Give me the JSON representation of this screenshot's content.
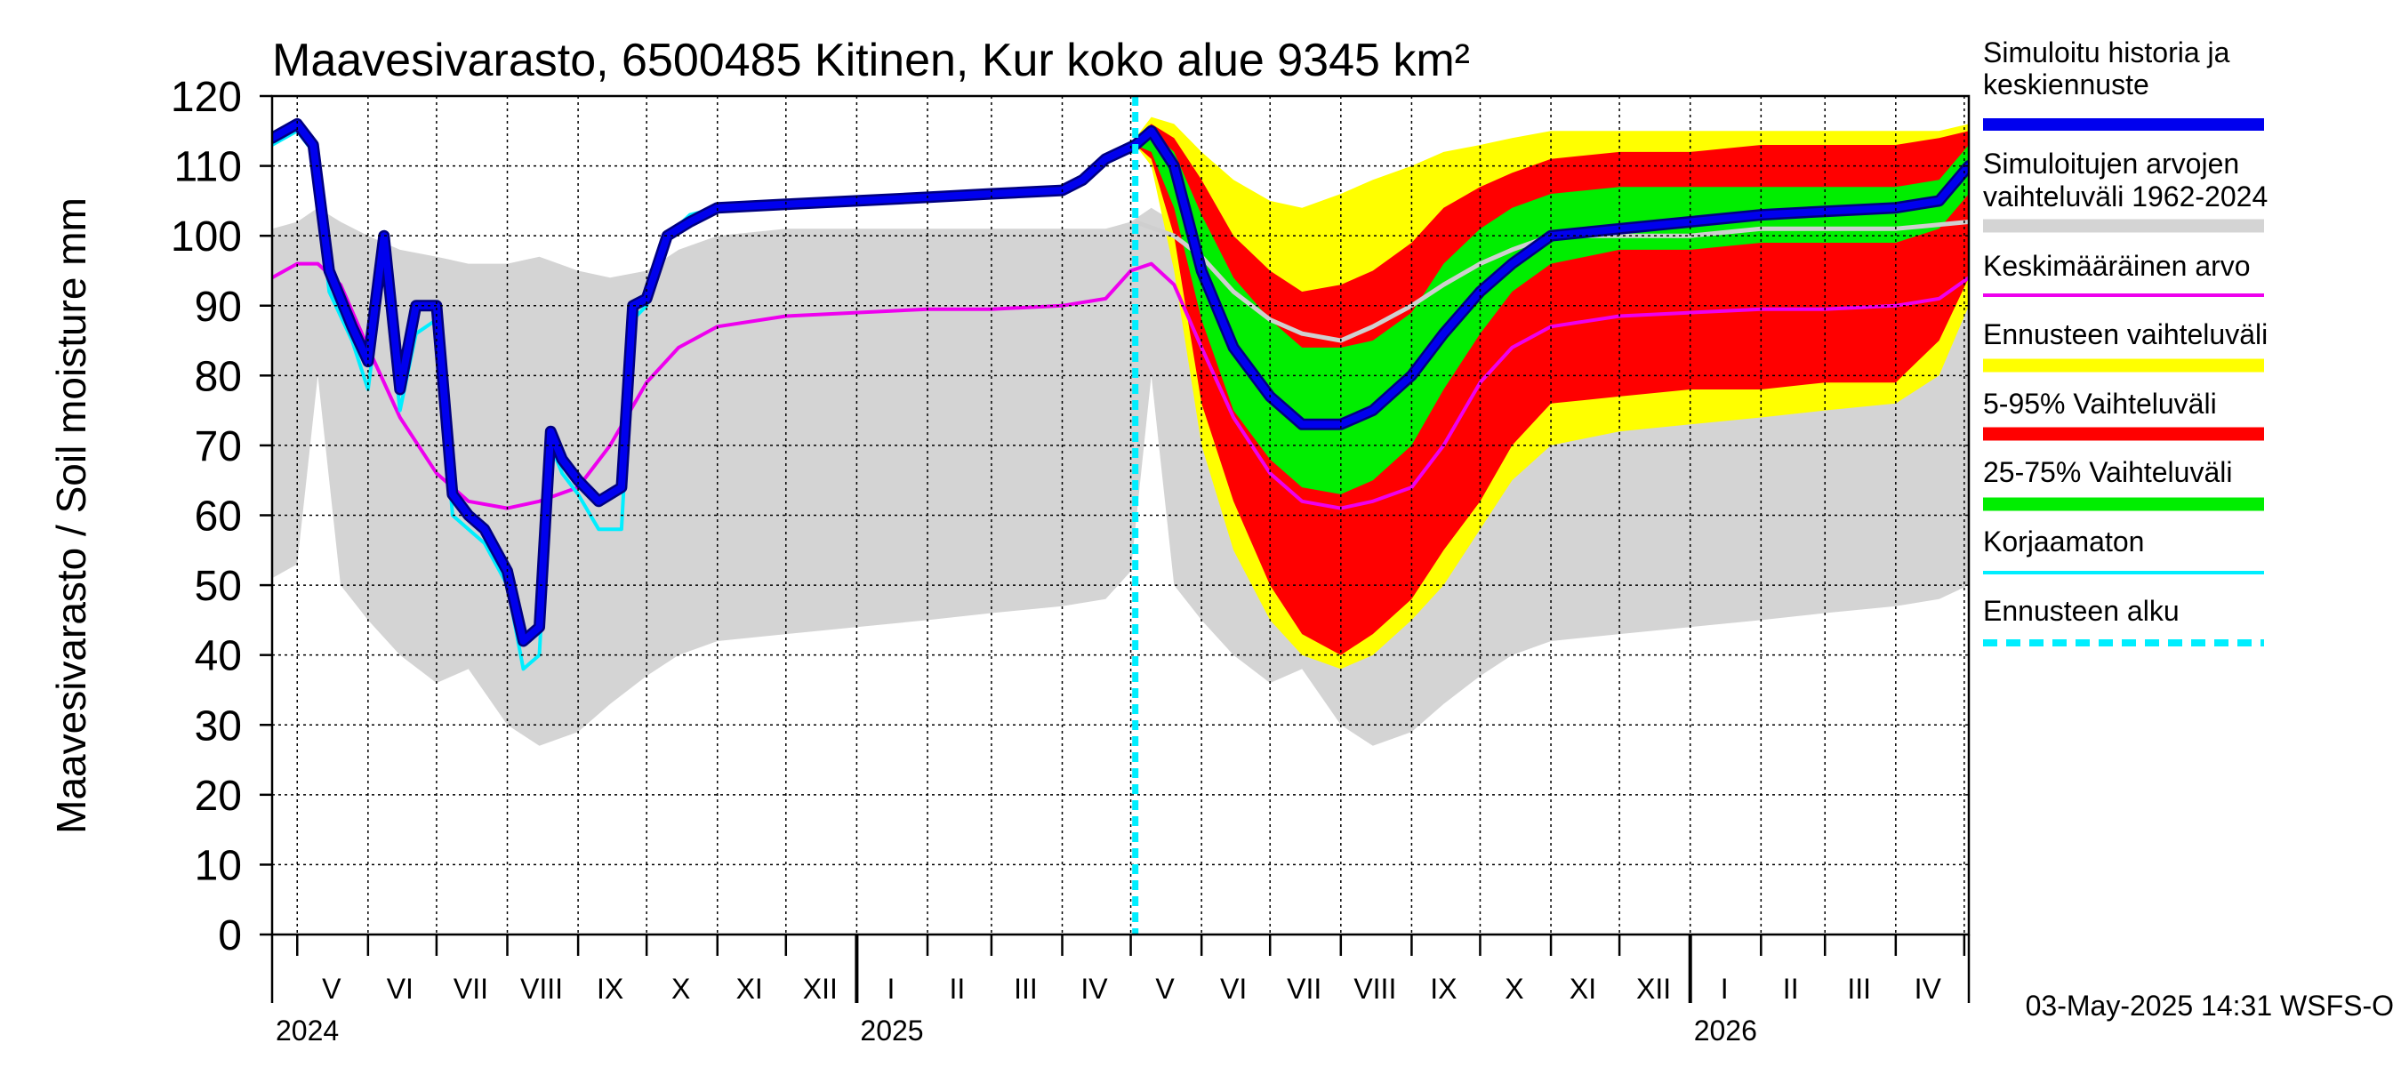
{
  "chart_data": {
    "type": "area",
    "title": "Maavesivarasto, 6500485 Kitinen, Kur koko alue 9345 km²",
    "ylabel": "Maavesivarasto / Soil moisture   mm",
    "xlabel": "",
    "ylim": [
      0,
      120
    ],
    "yticks": [
      0,
      10,
      20,
      30,
      40,
      50,
      60,
      70,
      80,
      90,
      100,
      110,
      120
    ],
    "xlim": [
      "2024-04-20",
      "2026-05-03"
    ],
    "grid": true,
    "legend_position": "right",
    "month_labels": [
      {
        "label": "V",
        "date": "2024-05-16"
      },
      {
        "label": "VI",
        "date": "2024-06-15"
      },
      {
        "label": "VII",
        "date": "2024-07-16"
      },
      {
        "label": "VIII",
        "date": "2024-08-16"
      },
      {
        "label": "IX",
        "date": "2024-09-15"
      },
      {
        "label": "X",
        "date": "2024-10-16"
      },
      {
        "label": "XI",
        "date": "2024-11-15"
      },
      {
        "label": "XII",
        "date": "2024-12-16"
      },
      {
        "label": "I",
        "date": "2025-01-16"
      },
      {
        "label": "II",
        "date": "2025-02-14"
      },
      {
        "label": "III",
        "date": "2025-03-16"
      },
      {
        "label": "IV",
        "date": "2025-04-15"
      },
      {
        "label": "V",
        "date": "2025-05-16"
      },
      {
        "label": "VI",
        "date": "2025-06-15"
      },
      {
        "label": "VII",
        "date": "2025-07-16"
      },
      {
        "label": "VIII",
        "date": "2025-08-16"
      },
      {
        "label": "IX",
        "date": "2025-09-15"
      },
      {
        "label": "X",
        "date": "2025-10-16"
      },
      {
        "label": "XI",
        "date": "2025-11-15"
      },
      {
        "label": "XII",
        "date": "2025-12-16"
      },
      {
        "label": "I",
        "date": "2026-01-16"
      },
      {
        "label": "II",
        "date": "2026-02-14"
      },
      {
        "label": "III",
        "date": "2026-03-16"
      },
      {
        "label": "IV",
        "date": "2026-04-15"
      }
    ],
    "month_boundaries": [
      "2024-05-01",
      "2024-06-01",
      "2024-07-01",
      "2024-08-01",
      "2024-09-01",
      "2024-10-01",
      "2024-11-01",
      "2024-12-01",
      "2025-01-01",
      "2025-02-01",
      "2025-03-01",
      "2025-04-01",
      "2025-05-01",
      "2025-06-01",
      "2025-07-01",
      "2025-08-01",
      "2025-09-01",
      "2025-10-01",
      "2025-11-01",
      "2025-12-01",
      "2026-01-01",
      "2026-02-01",
      "2026-03-01",
      "2026-04-01",
      "2026-05-01"
    ],
    "year_boundaries": [
      "2025-01-01",
      "2026-01-01"
    ],
    "year_labels": [
      {
        "label": "2024",
        "date": "2024-04-20"
      },
      {
        "label": "2025",
        "date": "2025-01-01"
      },
      {
        "label": "2026",
        "date": "2026-01-01"
      }
    ],
    "forecast_start": "2025-05-03",
    "colors": {
      "history": "#0000ee",
      "history_edge": "#000080",
      "range": "#d4d4d4",
      "mean": "#ee00ee",
      "forecast_range": "#ffff00",
      "p5_95": "#ff0000",
      "p25_75": "#00ee00",
      "uncorrected": "#00eeff",
      "forecast_start": "#00eeff",
      "forecast_median": "#cfcfcf"
    },
    "legend": [
      {
        "label": "Simuloitu historia ja keskiennuste",
        "style": "thick",
        "color": "#0000ee"
      },
      {
        "label": "Simuloitujen arvojen vaihteluväli 1962-2024",
        "style": "band",
        "color": "#d4d4d4"
      },
      {
        "label": "Keskimääräinen arvo",
        "style": "line",
        "color": "#ee00ee"
      },
      {
        "label": "Ennusteen vaihteluväli",
        "style": "band",
        "color": "#ffff00"
      },
      {
        "label": "5-95% Vaihteluväli",
        "style": "band",
        "color": "#ff0000"
      },
      {
        "label": "25-75% Vaihteluväli",
        "style": "band",
        "color": "#00ee00"
      },
      {
        "label": "Korjaamaton",
        "style": "line",
        "color": "#00eeff"
      },
      {
        "label": "Ennusteen alku",
        "style": "dashed",
        "color": "#00eeff"
      }
    ],
    "series": [
      {
        "name": "Simuloitujen arvojen vaihteluväli 1962-2024",
        "kind": "band",
        "x": [
          "2024-04-20",
          "2024-05-01",
          "2024-05-10",
          "2024-05-20",
          "2024-06-01",
          "2024-06-15",
          "2024-07-01",
          "2024-07-15",
          "2024-08-01",
          "2024-08-15",
          "2024-09-01",
          "2024-09-15",
          "2024-10-01",
          "2024-10-15",
          "2024-11-01",
          "2024-12-01",
          "2025-01-01",
          "2025-02-01",
          "2025-03-01",
          "2025-04-01",
          "2025-04-20",
          "2025-05-01",
          "2025-05-10",
          "2025-05-20",
          "2025-06-01",
          "2025-06-15",
          "2025-07-01",
          "2025-07-15",
          "2025-08-01",
          "2025-08-15",
          "2025-09-01",
          "2025-09-15",
          "2025-10-01",
          "2025-10-15",
          "2025-11-01",
          "2025-12-01",
          "2026-01-01",
          "2026-02-01",
          "2026-03-01",
          "2026-04-01",
          "2026-04-20",
          "2026-05-03"
        ],
        "lower": [
          51,
          53,
          80,
          50,
          45,
          40,
          36,
          38,
          30,
          27,
          29,
          33,
          37,
          40,
          42,
          43,
          44,
          45,
          46,
          47,
          48,
          52,
          80,
          50,
          45,
          40,
          36,
          38,
          30,
          27,
          29,
          33,
          37,
          40,
          42,
          43,
          44,
          45,
          46,
          47,
          48,
          50
        ],
        "upper": [
          101,
          102,
          104,
          102,
          100,
          98,
          97,
          96,
          96,
          97,
          95,
          94,
          95,
          98,
          100,
          101,
          101,
          101,
          101,
          101,
          101,
          102,
          104,
          102,
          100,
          98,
          97,
          96,
          96,
          97,
          95,
          94,
          95,
          98,
          100,
          101,
          101,
          101,
          101,
          101,
          101,
          102
        ]
      },
      {
        "name": "Ennusteen vaihteluväli",
        "kind": "band",
        "x": [
          "2025-05-03",
          "2025-05-10",
          "2025-05-20",
          "2025-06-01",
          "2025-06-15",
          "2025-07-01",
          "2025-07-15",
          "2025-08-01",
          "2025-08-15",
          "2025-09-01",
          "2025-09-15",
          "2025-10-01",
          "2025-10-15",
          "2025-11-01",
          "2025-12-01",
          "2026-01-01",
          "2026-02-01",
          "2026-03-01",
          "2026-04-01",
          "2026-04-20",
          "2026-05-03"
        ],
        "lower": [
          113,
          110,
          95,
          70,
          55,
          45,
          40,
          38,
          40,
          45,
          50,
          58,
          65,
          70,
          72,
          73,
          74,
          75,
          76,
          80,
          90
        ],
        "upper": [
          114,
          117,
          116,
          112,
          108,
          105,
          104,
          106,
          108,
          110,
          112,
          113,
          114,
          115,
          115,
          115,
          115,
          115,
          115,
          115,
          116
        ]
      },
      {
        "name": "5-95% Vaihteluväli",
        "kind": "band",
        "x": [
          "2025-05-03",
          "2025-05-10",
          "2025-05-20",
          "2025-06-01",
          "2025-06-15",
          "2025-07-01",
          "2025-07-15",
          "2025-08-01",
          "2025-08-15",
          "2025-09-01",
          "2025-09-15",
          "2025-10-01",
          "2025-10-15",
          "2025-11-01",
          "2025-12-01",
          "2026-01-01",
          "2026-02-01",
          "2026-03-01",
          "2026-04-01",
          "2026-04-20",
          "2026-05-03"
        ],
        "lower": [
          113,
          111,
          100,
          76,
          62,
          50,
          43,
          40,
          43,
          48,
          55,
          62,
          70,
          76,
          77,
          78,
          78,
          79,
          79,
          85,
          94
        ],
        "upper": [
          114,
          116,
          114,
          108,
          100,
          95,
          92,
          93,
          95,
          99,
          104,
          107,
          109,
          111,
          112,
          112,
          113,
          113,
          113,
          114,
          115
        ]
      },
      {
        "name": "25-75% Vaihteluväli",
        "kind": "band",
        "x": [
          "2025-05-03",
          "2025-05-10",
          "2025-05-20",
          "2025-06-01",
          "2025-06-15",
          "2025-07-01",
          "2025-07-15",
          "2025-08-01",
          "2025-08-15",
          "2025-09-01",
          "2025-09-15",
          "2025-10-01",
          "2025-10-15",
          "2025-11-01",
          "2025-12-01",
          "2026-01-01",
          "2026-02-01",
          "2026-03-01",
          "2026-04-01",
          "2026-04-20",
          "2026-05-03"
        ],
        "lower": [
          113,
          112,
          104,
          88,
          75,
          68,
          64,
          63,
          65,
          70,
          78,
          86,
          92,
          96,
          98,
          98,
          99,
          99,
          99,
          101,
          106
        ],
        "upper": [
          114,
          115,
          112,
          103,
          94,
          88,
          84,
          84,
          85,
          89,
          96,
          101,
          104,
          106,
          107,
          107,
          107,
          107,
          107,
          108,
          113
        ]
      },
      {
        "name": "Ennusteen mediaani",
        "kind": "line",
        "x": [
          "2025-05-03",
          "2025-05-20",
          "2025-06-01",
          "2025-06-15",
          "2025-07-01",
          "2025-07-15",
          "2025-08-01",
          "2025-08-15",
          "2025-09-01",
          "2025-09-15",
          "2025-10-01",
          "2025-10-15",
          "2025-11-01",
          "2025-12-01",
          "2026-01-01",
          "2026-02-01",
          "2026-03-01",
          "2026-04-01",
          "2026-05-03"
        ],
        "y": [
          102,
          100,
          97,
          92,
          88,
          86,
          85,
          87,
          90,
          93,
          96,
          98,
          100,
          100,
          100,
          101,
          101,
          101,
          102
        ]
      },
      {
        "name": "Keskimääräinen arvo",
        "kind": "line",
        "x": [
          "2024-04-20",
          "2024-05-01",
          "2024-05-10",
          "2024-05-20",
          "2024-06-01",
          "2024-06-15",
          "2024-07-01",
          "2024-07-15",
          "2024-08-01",
          "2024-08-15",
          "2024-09-01",
          "2024-09-15",
          "2024-10-01",
          "2024-10-15",
          "2024-11-01",
          "2024-12-01",
          "2025-01-01",
          "2025-02-01",
          "2025-03-01",
          "2025-04-01",
          "2025-04-20",
          "2025-05-01",
          "2025-05-10",
          "2025-05-20",
          "2025-06-01",
          "2025-06-15",
          "2025-07-01",
          "2025-07-15",
          "2025-08-01",
          "2025-08-15",
          "2025-09-01",
          "2025-09-15",
          "2025-10-01",
          "2025-10-15",
          "2025-11-01",
          "2025-12-01",
          "2026-01-01",
          "2026-02-01",
          "2026-03-01",
          "2026-04-01",
          "2026-04-20",
          "2026-05-03"
        ],
        "y": [
          94,
          96,
          96,
          93,
          84,
          74,
          66,
          62,
          61,
          62,
          64,
          70,
          79,
          84,
          87,
          88.5,
          89,
          89.5,
          89.5,
          90,
          91,
          95,
          96,
          93,
          84,
          74,
          66,
          62,
          61,
          62,
          64,
          70,
          79,
          84,
          87,
          88.5,
          89,
          89.5,
          89.5,
          90,
          91,
          94
        ]
      },
      {
        "name": "Korjaamaton",
        "kind": "line",
        "x": [
          "2024-04-20",
          "2024-05-01",
          "2024-05-08",
          "2024-05-15",
          "2024-05-25",
          "2024-06-01",
          "2024-06-08",
          "2024-06-15",
          "2024-06-22",
          "2024-07-01",
          "2024-07-08",
          "2024-07-15",
          "2024-07-22",
          "2024-08-01",
          "2024-08-08",
          "2024-08-15",
          "2024-08-20",
          "2024-08-25",
          "2024-09-01",
          "2024-09-10",
          "2024-09-20",
          "2024-09-25",
          "2024-10-01",
          "2024-10-10",
          "2024-10-20",
          "2024-11-01",
          "2024-12-01",
          "2025-01-01",
          "2025-02-01",
          "2025-03-01",
          "2025-04-01",
          "2025-04-10",
          "2025-04-20",
          "2025-05-03"
        ],
        "y": [
          113,
          115,
          112,
          92,
          85,
          78,
          96,
          75,
          86,
          88,
          60,
          58,
          56,
          50,
          38,
          40,
          70,
          66,
          63,
          58,
          58,
          88,
          90,
          100,
          103,
          104,
          104.5,
          105,
          105.5,
          106,
          106.5,
          108,
          111,
          113
        ]
      },
      {
        "name": "Simuloitu historia ja keskiennuste",
        "kind": "line",
        "x": [
          "2024-04-20",
          "2024-05-01",
          "2024-05-08",
          "2024-05-15",
          "2024-05-25",
          "2024-06-01",
          "2024-06-08",
          "2024-06-15",
          "2024-06-22",
          "2024-07-01",
          "2024-07-08",
          "2024-07-15",
          "2024-07-22",
          "2024-08-01",
          "2024-08-08",
          "2024-08-15",
          "2024-08-20",
          "2024-08-25",
          "2024-09-01",
          "2024-09-10",
          "2024-09-20",
          "2024-09-25",
          "2024-10-01",
          "2024-10-10",
          "2024-10-20",
          "2024-11-01",
          "2024-12-01",
          "2025-01-01",
          "2025-02-01",
          "2025-03-01",
          "2025-04-01",
          "2025-04-10",
          "2025-04-20",
          "2025-05-03",
          "2025-05-10",
          "2025-05-20",
          "2025-06-01",
          "2025-06-15",
          "2025-07-01",
          "2025-07-15",
          "2025-08-01",
          "2025-08-15",
          "2025-09-01",
          "2025-09-15",
          "2025-10-01",
          "2025-10-15",
          "2025-11-01",
          "2025-12-01",
          "2026-01-01",
          "2026-02-01",
          "2026-03-01",
          "2026-04-01",
          "2026-04-20",
          "2026-05-03"
        ],
        "y": [
          114,
          116,
          113,
          95,
          87,
          82,
          100,
          78,
          90,
          90,
          63,
          60,
          58,
          52,
          42,
          44,
          72,
          68,
          65,
          62,
          64,
          90,
          91,
          100,
          102,
          104,
          104.5,
          105,
          105.5,
          106,
          106.5,
          108,
          111,
          113,
          115,
          110,
          95,
          84,
          77,
          73,
          73,
          75,
          80,
          86,
          92,
          96,
          100,
          101,
          102,
          103,
          103.5,
          104,
          105,
          110
        ]
      }
    ],
    "footer": "03-May-2025 14:31 WSFS-O"
  }
}
